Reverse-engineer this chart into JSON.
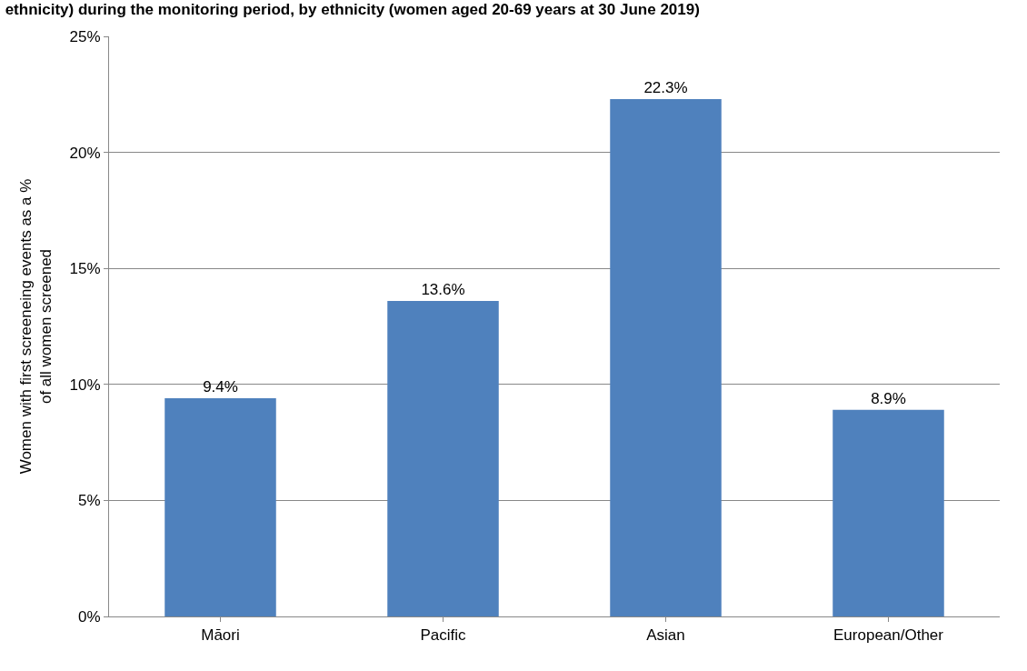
{
  "chart_data": {
    "type": "bar",
    "title": "ethnicity) during the monitoring period, by ethnicity (women aged 20-69 years at 30 June 2019)",
    "ylabel": "Women with first screeneing events as a % of all women screened",
    "categories": [
      "Māori",
      "Pacific",
      "Asian",
      "European/Other"
    ],
    "values": [
      9.4,
      13.6,
      22.3,
      8.9
    ],
    "value_labels": [
      "9.4%",
      "13.6%",
      "22.3%",
      "8.9%"
    ],
    "color": "#4f81bd",
    "ylim": [
      0,
      25
    ],
    "yticks": [
      {
        "value": 0,
        "label": "0%"
      },
      {
        "value": 5,
        "label": "5%"
      },
      {
        "value": 10,
        "label": "10%"
      },
      {
        "value": 15,
        "label": "15%"
      },
      {
        "value": 20,
        "label": "20%"
      },
      {
        "value": 25,
        "label": "25%"
      }
    ],
    "grid": "y"
  }
}
